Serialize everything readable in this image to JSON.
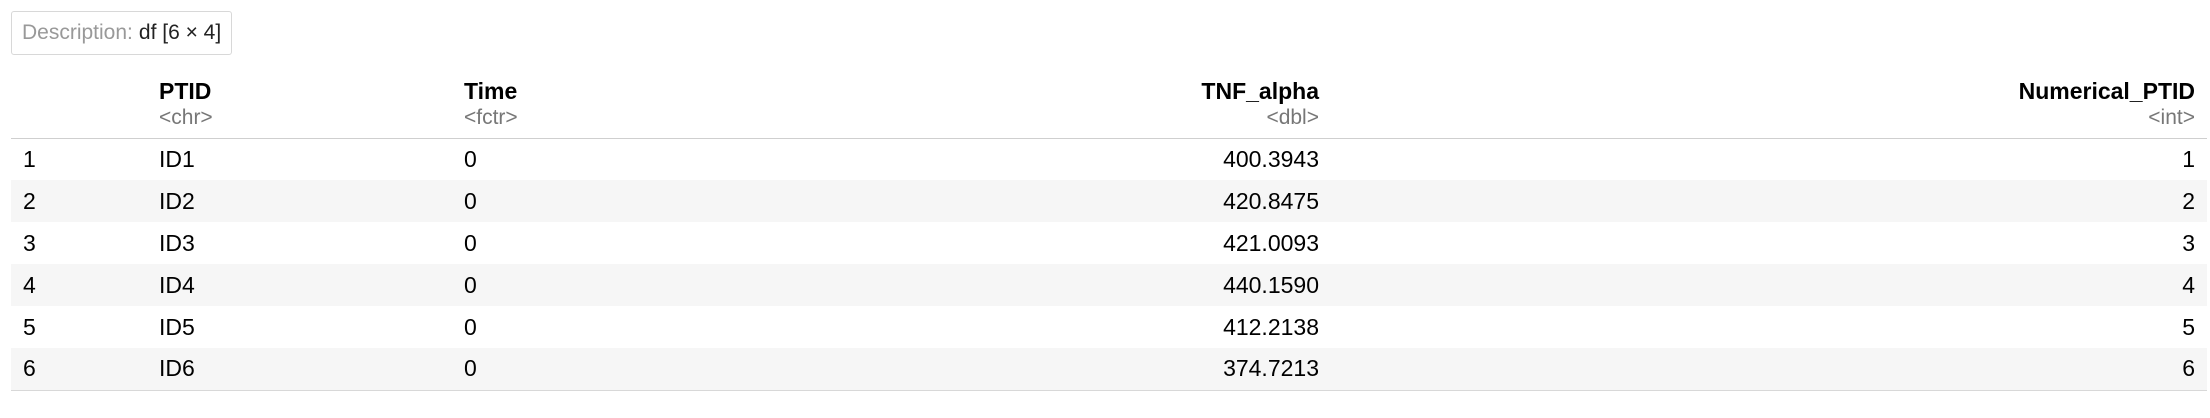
{
  "description": {
    "label": "Description:",
    "value": "df [6 × 4]"
  },
  "table": {
    "columns": [
      {
        "name": "",
        "type": ""
      },
      {
        "name": "PTID",
        "type": "<chr>"
      },
      {
        "name": "Time",
        "type": "<fctr>"
      },
      {
        "name": "TNF_alpha",
        "type": "<dbl>"
      },
      {
        "name": "Numerical_PTID",
        "type": "<int>"
      }
    ],
    "rows": [
      [
        "1",
        "ID1",
        "0",
        "400.3943",
        "1"
      ],
      [
        "2",
        "ID2",
        "0",
        "420.8475",
        "2"
      ],
      [
        "3",
        "ID3",
        "0",
        "421.0093",
        "3"
      ],
      [
        "4",
        "ID4",
        "0",
        "440.1590",
        "4"
      ],
      [
        "5",
        "ID5",
        "0",
        "412.2138",
        "5"
      ],
      [
        "6",
        "ID6",
        "0",
        "374.7213",
        "6"
      ]
    ]
  }
}
